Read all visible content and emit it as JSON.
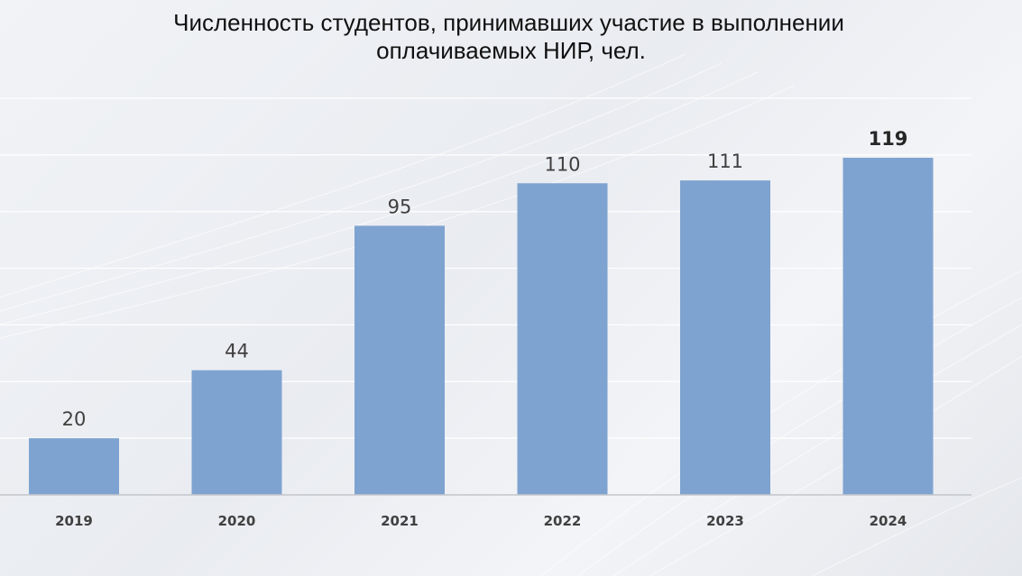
{
  "chart_data": {
    "type": "bar",
    "title_line1": "Численность студентов, принимавших участие в выполнении",
    "title_line2": "оплачиваемых НИР, чел.",
    "categories": [
      "2019",
      "2020",
      "2021",
      "2022",
      "2023",
      "2024"
    ],
    "values": [
      20,
      44,
      95,
      110,
      111,
      119
    ],
    "ylim": [
      0,
      140
    ],
    "grid": true,
    "bar_color": "#7fa3d0",
    "label_color": "#404040"
  }
}
